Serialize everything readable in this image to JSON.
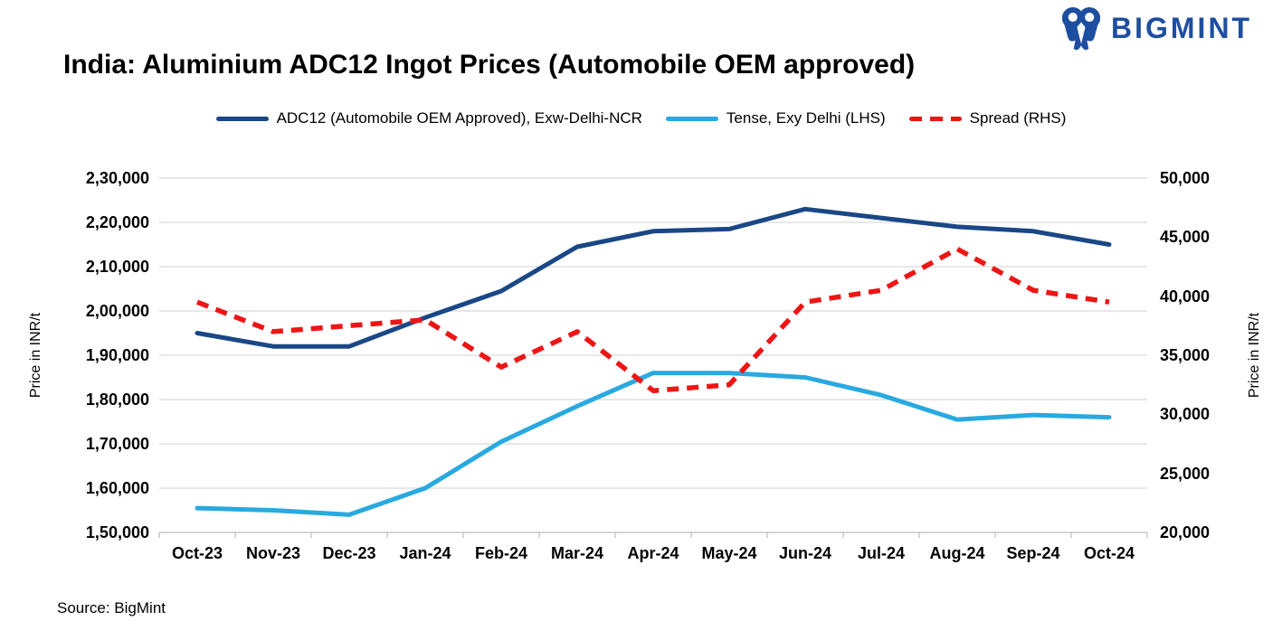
{
  "header": {
    "logo": {
      "text": "BIGMINT",
      "icon": "bigmint-logo-icon",
      "color": "#1E4EA1"
    }
  },
  "footer": {
    "source": "Source: BigMint"
  },
  "chart_data": {
    "type": "line",
    "title": "India: Aluminium ADC12 Ingot Prices (Automobile OEM approved)",
    "categories": [
      "Oct-23",
      "Nov-23",
      "Dec-23",
      "Jan-24",
      "Feb-24",
      "Mar-24",
      "Apr-24",
      "May-24",
      "Jun-24",
      "Jul-24",
      "Aug-24",
      "Sep-24",
      "Oct-24"
    ],
    "series": [
      {
        "name": "ADC12 (Automobile OEM Approved), Exw-Delhi-NCR",
        "axis": "left",
        "color": "#1A4786",
        "line_style": "solid",
        "values": [
          195000,
          192000,
          192000,
          198500,
          204500,
          214500,
          218000,
          218500,
          223000,
          221000,
          219000,
          218000,
          215000
        ]
      },
      {
        "name": "Tense, Exy Delhi (LHS)",
        "axis": "left",
        "color": "#29A9E0",
        "line_style": "solid",
        "values": [
          155500,
          155000,
          154000,
          160000,
          170500,
          178500,
          186000,
          186000,
          185000,
          181000,
          175500,
          176500,
          176000
        ]
      },
      {
        "name": "Spread (RHS)",
        "axis": "right",
        "color": "#EE1515",
        "line_style": "dashed",
        "values": [
          39500,
          37000,
          37500,
          38000,
          34000,
          37000,
          32000,
          32500,
          39500,
          40500,
          44000,
          40500,
          39500
        ]
      }
    ],
    "left_axis": {
      "label": "Price in INR/t",
      "min": 150000,
      "max": 230000,
      "step": 10000,
      "tick_labels": [
        "2,30,000",
        "2,20,000",
        "2,10,000",
        "2,00,000",
        "1,90,000",
        "1,80,000",
        "1,70,000",
        "1,60,000",
        "1,50,000"
      ]
    },
    "right_axis": {
      "label": "Price in INR/t",
      "min": 20000,
      "max": 50000,
      "step": 5000,
      "tick_labels": [
        "50,000",
        "45,000",
        "40,000",
        "35,000",
        "30,000",
        "25,000",
        "20,000"
      ]
    },
    "grid": true,
    "grid_color": "#D9D9D9",
    "axis_line_color": "#BFBFBF",
    "legend_position": "top"
  }
}
